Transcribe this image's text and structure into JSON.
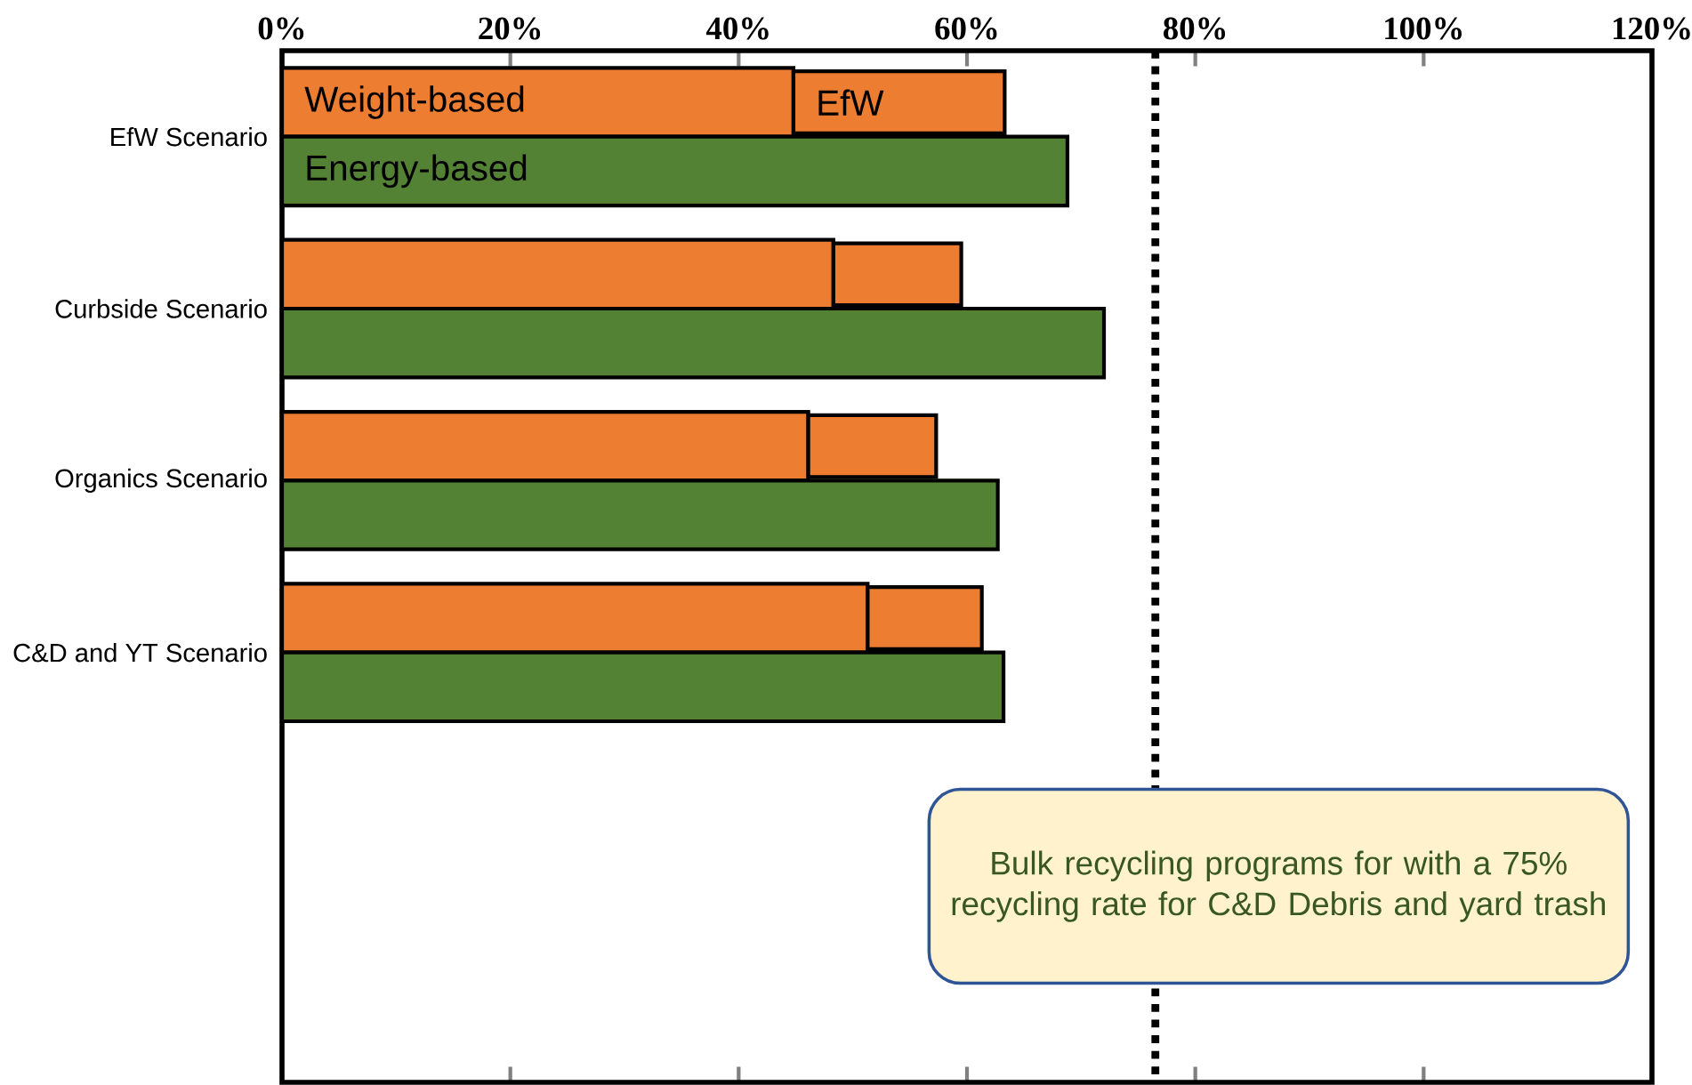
{
  "chart_data": {
    "type": "bar",
    "orientation": "horizontal",
    "categories": [
      "EfW Scenario",
      "Curbside Scenario",
      "Organics Scenario",
      "C&D and YT Scenario",
      null,
      null
    ],
    "series": [
      {
        "name": "Weight-based",
        "color": "#ed7d31",
        "values": [
          44.8,
          48.3,
          46.1,
          51.3,
          null,
          null
        ]
      },
      {
        "name": "EfW",
        "color": "#ed7d31",
        "base": [
          44.8,
          48.3,
          46.1,
          51.3,
          null,
          null
        ],
        "values": [
          18.5,
          11.2,
          11.2,
          10.0,
          null,
          null
        ]
      },
      {
        "name": "Energy-based",
        "color": "#548235",
        "values": [
          68.8,
          72.0,
          62.7,
          63.2,
          null,
          null
        ]
      }
    ],
    "xlim": [
      0,
      120
    ],
    "xticks": [
      {
        "value": 0,
        "label": "0%"
      },
      {
        "value": 20,
        "label": "20%"
      },
      {
        "value": 40,
        "label": "40%"
      },
      {
        "value": 60,
        "label": "60%"
      },
      {
        "value": 80,
        "label": "80%"
      },
      {
        "value": 100,
        "label": "100%"
      },
      {
        "value": 120,
        "label": "120%"
      }
    ],
    "ref_lines": [
      {
        "axis": "x",
        "value": 76.5,
        "color": "#000000",
        "line_style": "dotted"
      }
    ],
    "annotations": [
      "Bulk recycling programs for with a 75% recycling rate for C&D Debris and yard trash"
    ],
    "grid": false,
    "legend": false
  }
}
